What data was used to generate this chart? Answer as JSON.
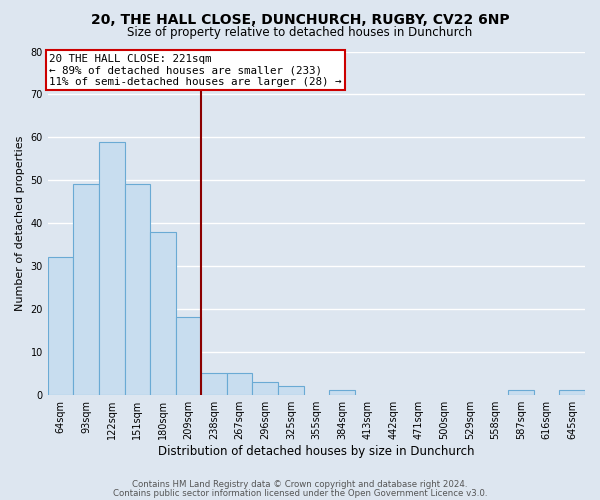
{
  "title": "20, THE HALL CLOSE, DUNCHURCH, RUGBY, CV22 6NP",
  "subtitle": "Size of property relative to detached houses in Dunchurch",
  "xlabel": "Distribution of detached houses by size in Dunchurch",
  "ylabel": "Number of detached properties",
  "bar_color": "#c8ddef",
  "bar_edge_color": "#6aaad4",
  "categories": [
    "64sqm",
    "93sqm",
    "122sqm",
    "151sqm",
    "180sqm",
    "209sqm",
    "238sqm",
    "267sqm",
    "296sqm",
    "325sqm",
    "355sqm",
    "384sqm",
    "413sqm",
    "442sqm",
    "471sqm",
    "500sqm",
    "529sqm",
    "558sqm",
    "587sqm",
    "616sqm",
    "645sqm"
  ],
  "values": [
    32,
    49,
    59,
    49,
    38,
    18,
    5,
    5,
    3,
    2,
    0,
    1,
    0,
    0,
    0,
    0,
    0,
    0,
    1,
    0,
    1
  ],
  "ylim": [
    0,
    80
  ],
  "yticks": [
    0,
    10,
    20,
    30,
    40,
    50,
    60,
    70,
    80
  ],
  "annotation_line1": "20 THE HALL CLOSE: 221sqm",
  "annotation_line2": "← 89% of detached houses are smaller (233)",
  "annotation_line3": "11% of semi-detached houses are larger (28) →",
  "vline_color": "#8b0000",
  "annotation_box_color": "#ffffff",
  "annotation_box_edge": "#cc0000",
  "footer1": "Contains HM Land Registry data © Crown copyright and database right 2024.",
  "footer2": "Contains public sector information licensed under the Open Government Licence v3.0.",
  "background_color": "#dde6f0",
  "plot_background": "#dde6f0",
  "grid_color": "#ffffff",
  "vline_bin_index": 5.5
}
